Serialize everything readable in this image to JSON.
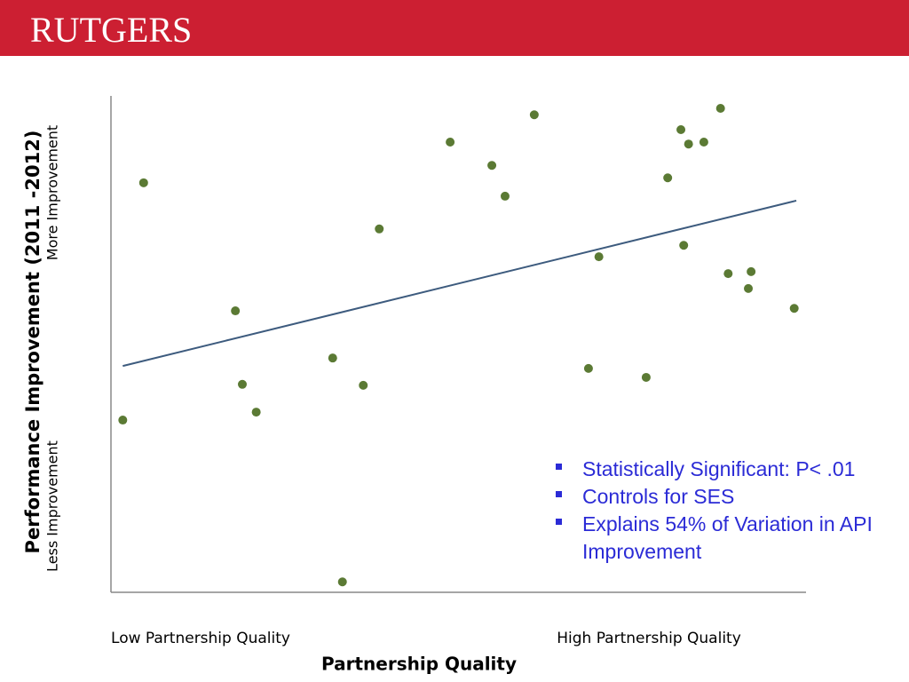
{
  "header": {
    "logo": "RUTGERS"
  },
  "chart_data": {
    "type": "scatter",
    "y_label": "Performance Improvement (2011 -2012)",
    "y_high_label": "More Improvement",
    "y_low_label": "Less Improvement",
    "x_low_label": "Low Partnership Quality",
    "x_high_label": "High Partnership Quality",
    "x_label": "Partnership Quality",
    "color": "#5b7a34",
    "xlim": [
      0,
      100
    ],
    "ylim": [
      0,
      100
    ],
    "x": [
      1.7,
      4.7,
      17.9,
      18.9,
      20.9,
      31.9,
      33.3,
      36.3,
      38.6,
      48.8,
      54.8,
      56.7,
      60.9,
      68.7,
      70.2,
      77.0,
      80.1,
      82.0,
      83.1,
      85.3,
      82.4,
      87.7,
      88.8,
      92.1,
      91.7,
      98.3
    ],
    "values": [
      34.7,
      82.5,
      56.7,
      41.9,
      36.3,
      47.2,
      2.1,
      41.7,
      73.2,
      90.7,
      86.0,
      79.8,
      96.2,
      45.1,
      67.6,
      43.3,
      83.5,
      93.2,
      90.3,
      90.7,
      69.9,
      97.5,
      64.2,
      64.6,
      61.2,
      57.2
    ],
    "trendline": {
      "color": "#3d5b7e",
      "x": [
        1.7,
        98.6
      ],
      "y": [
        45.6,
        78.9
      ]
    }
  },
  "notes": {
    "bullets": [
      "Statistically Significant: P< .01",
      "Controls for SES",
      "Explains 54% of Variation in API Improvement"
    ]
  }
}
